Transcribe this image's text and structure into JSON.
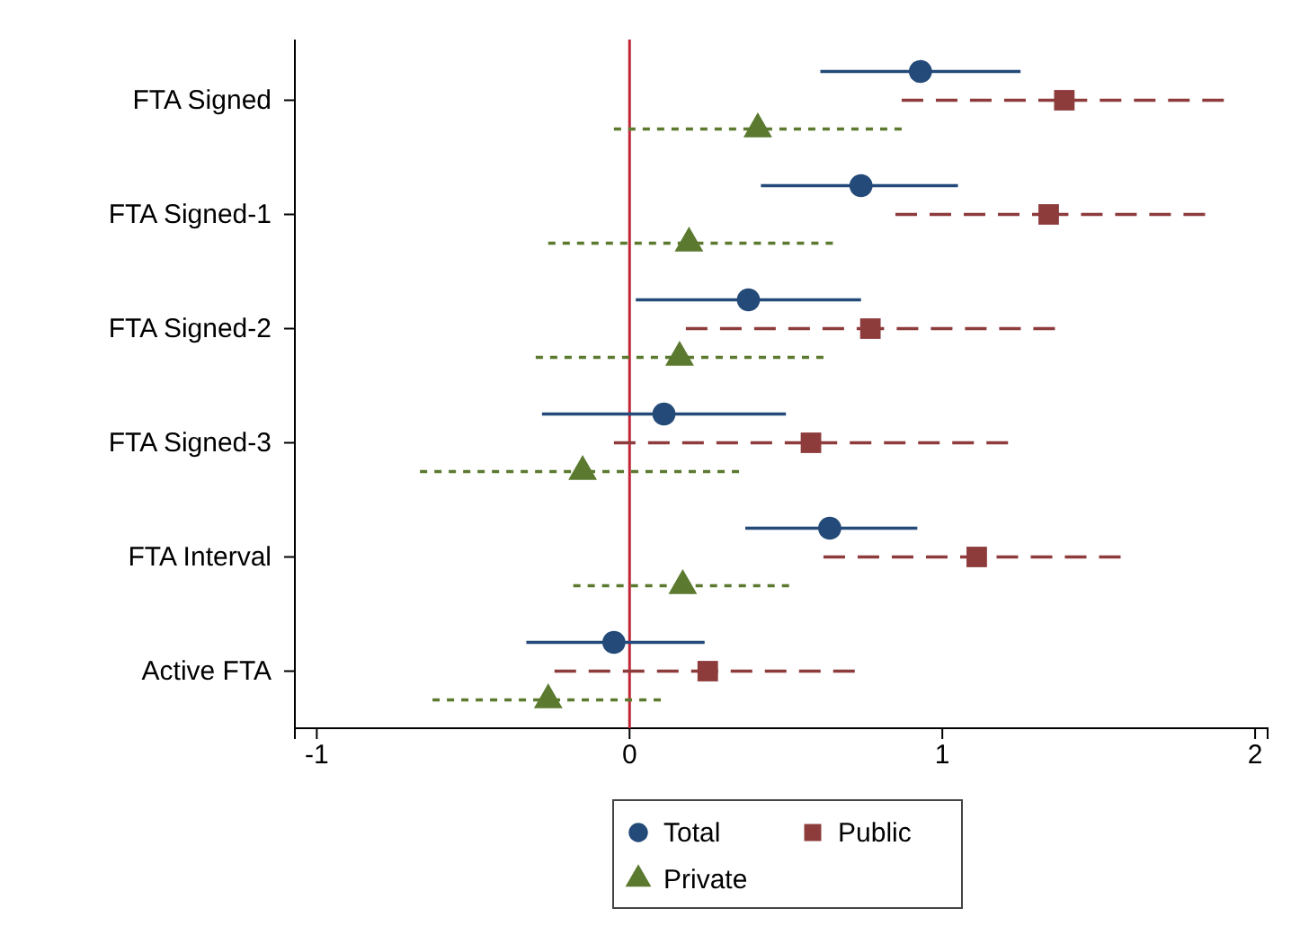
{
  "chart_data": {
    "type": "scatter",
    "orientation": "horizontal",
    "categories": [
      "FTA Signed",
      "FTA Signed-1",
      "FTA Signed-2",
      "FTA Signed-3",
      "FTA Interval",
      "Active FTA"
    ],
    "xlim": [
      -1.07,
      2.04
    ],
    "xticks": [
      -1,
      0,
      1,
      2
    ],
    "legend": "bottom",
    "ref_lines": [
      {
        "axis": "x",
        "value": 0,
        "color": "#c0283a"
      }
    ],
    "series": [
      {
        "name": "Total",
        "color": "#234a78",
        "marker": "circle",
        "line_style": "solid",
        "values": [
          0.93,
          0.74,
          0.38,
          0.11,
          0.64,
          -0.05
        ],
        "errors": [
          [
            0.61,
            1.25
          ],
          [
            0.42,
            1.05
          ],
          [
            0.02,
            0.74
          ],
          [
            -0.28,
            0.5
          ],
          [
            0.37,
            0.92
          ],
          [
            -0.33,
            0.24
          ]
        ]
      },
      {
        "name": "Public",
        "color": "#8e3b3c",
        "marker": "square",
        "line_style": "dashed",
        "values": [
          1.39,
          1.34,
          0.77,
          0.58,
          1.11,
          0.25
        ],
        "errors": [
          [
            0.87,
            1.9
          ],
          [
            0.85,
            1.84
          ],
          [
            0.18,
            1.36
          ],
          [
            -0.05,
            1.21
          ],
          [
            0.62,
            1.57
          ],
          [
            -0.24,
            0.72
          ]
        ]
      },
      {
        "name": "Private",
        "color": "#5b7a2f",
        "marker": "triangle",
        "line_style": "dotted",
        "values": [
          0.41,
          0.19,
          0.16,
          -0.15,
          0.17,
          -0.26
        ],
        "errors": [
          [
            -0.05,
            0.87
          ],
          [
            -0.26,
            0.65
          ],
          [
            -0.3,
            0.62
          ],
          [
            -0.67,
            0.35
          ],
          [
            -0.18,
            0.51
          ],
          [
            -0.63,
            0.1
          ]
        ]
      }
    ]
  }
}
